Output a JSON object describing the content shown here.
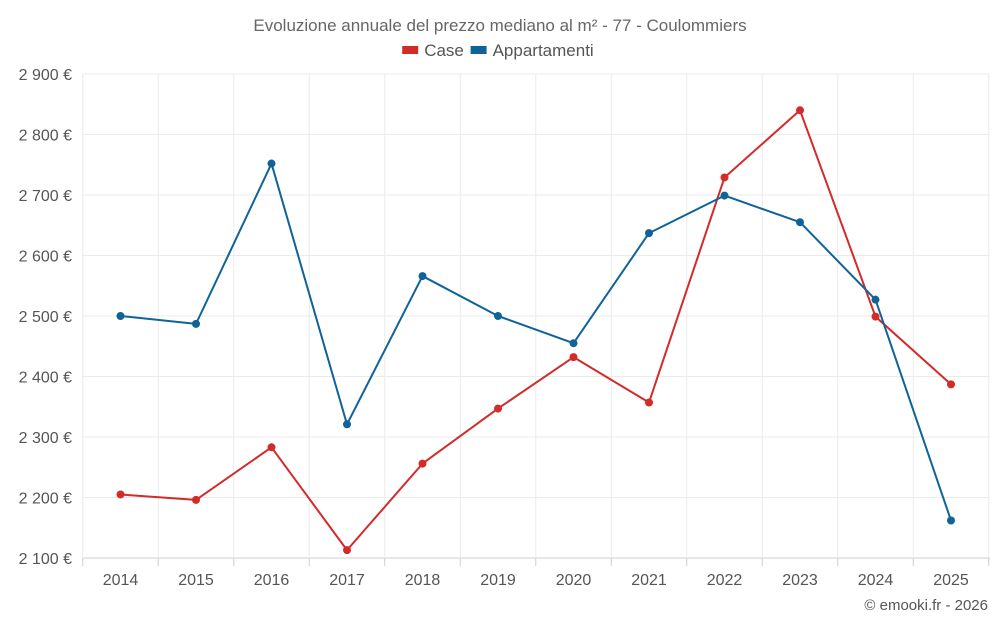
{
  "chart_data": {
    "type": "line",
    "title": "Evoluzione annuale del prezzo mediano al m² - 77 - Coulommiers",
    "categories": [
      "2014",
      "2015",
      "2016",
      "2017",
      "2018",
      "2019",
      "2020",
      "2021",
      "2022",
      "2023",
      "2024",
      "2025"
    ],
    "series": [
      {
        "name": "Case",
        "color": "#d32a2a",
        "values": [
          2205,
          2196,
          2283,
          2113,
          2256,
          2347,
          2432,
          2357,
          2729,
          2840,
          2499,
          2387
        ]
      },
      {
        "name": "Appartamenti",
        "color": "#0f6398",
        "values": [
          2500,
          2487,
          2752,
          2321,
          2566,
          2500,
          2455,
          2637,
          2699,
          2655,
          2527,
          2162
        ]
      }
    ],
    "ylim": [
      2100,
      2900
    ],
    "yticks": [
      2100,
      2200,
      2300,
      2400,
      2500,
      2600,
      2700,
      2800,
      2900
    ],
    "ytick_labels": [
      "2 100 €",
      "2 200 €",
      "2 300 €",
      "2 400 €",
      "2 500 €",
      "2 600 €",
      "2 700 €",
      "2 800 €",
      "2 900 €"
    ],
    "legend_position": "top-center",
    "grid": true,
    "credit": "© emooki.fr - 2026"
  }
}
